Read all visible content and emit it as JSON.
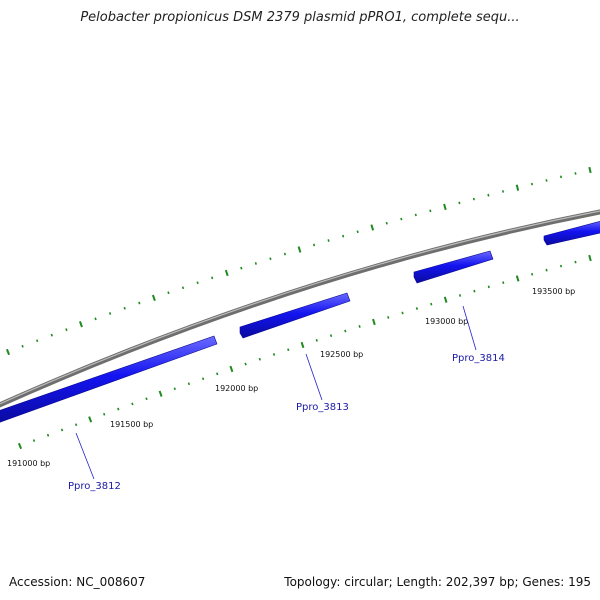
{
  "title": "Pelobacter propionicus DSM 2379 plasmid pPRO1, complete sequ...",
  "footer": {
    "accession": "Accession: NC_008607",
    "summary": "Topology: circular; Length: 202,397 bp; Genes: 195"
  },
  "colors": {
    "backbone": "#8c8c8c",
    "gene": "#1414f0",
    "gene_label": "#1a1aa8",
    "tick": "#1f8a1f"
  },
  "scale_labels": [
    "191000 bp",
    "191500 bp",
    "192000 bp",
    "192500 bp",
    "193000 bp",
    "193500 bp"
  ],
  "genes": [
    {
      "name": "Ppro_3812"
    },
    {
      "name": "Ppro_3813"
    },
    {
      "name": "Ppro_3814"
    }
  ]
}
